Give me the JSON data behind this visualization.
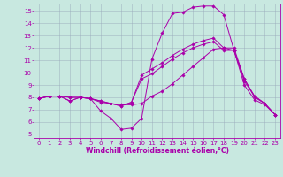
{
  "xlabel": "Windchill (Refroidissement éolien,°C)",
  "xlim_min": -0.5,
  "xlim_max": 23.5,
  "ylim_min": 4.7,
  "ylim_max": 15.6,
  "xticks": [
    0,
    1,
    2,
    3,
    4,
    5,
    6,
    7,
    8,
    9,
    10,
    11,
    12,
    13,
    14,
    15,
    16,
    17,
    18,
    19,
    20,
    21,
    22,
    23
  ],
  "yticks": [
    5,
    6,
    7,
    8,
    9,
    10,
    11,
    12,
    13,
    14,
    15
  ],
  "bg_color": "#c8e8e0",
  "line_color": "#aa00aa",
  "grid_color": "#99aabb",
  "series": [
    [
      7.9,
      8.1,
      8.1,
      7.7,
      8.0,
      7.9,
      6.9,
      6.3,
      5.4,
      5.5,
      6.3,
      11.1,
      13.2,
      14.8,
      14.9,
      15.3,
      15.4,
      15.4,
      14.7,
      11.8,
      9.3,
      8.1,
      7.5,
      6.6
    ],
    [
      7.9,
      8.1,
      8.1,
      7.7,
      8.0,
      7.9,
      7.6,
      7.5,
      7.4,
      7.4,
      7.5,
      8.1,
      8.5,
      9.1,
      9.8,
      10.5,
      11.2,
      11.9,
      12.0,
      12.0,
      9.5,
      8.1,
      7.5,
      6.6
    ],
    [
      7.9,
      8.1,
      8.1,
      8.0,
      8.0,
      7.9,
      7.7,
      7.5,
      7.3,
      7.6,
      9.8,
      10.3,
      10.8,
      11.4,
      11.9,
      12.3,
      12.6,
      12.8,
      12.0,
      11.8,
      9.5,
      8.0,
      7.5,
      6.6
    ],
    [
      7.9,
      8.1,
      8.1,
      8.0,
      8.0,
      7.9,
      7.7,
      7.5,
      7.3,
      7.6,
      9.5,
      9.9,
      10.5,
      11.1,
      11.6,
      12.0,
      12.3,
      12.5,
      11.8,
      11.8,
      9.0,
      7.8,
      7.4,
      6.6
    ]
  ],
  "marker": "D",
  "markersize": 1.8,
  "linewidth": 0.7,
  "tick_fontsize": 5.0,
  "xlabel_fontsize": 5.5
}
